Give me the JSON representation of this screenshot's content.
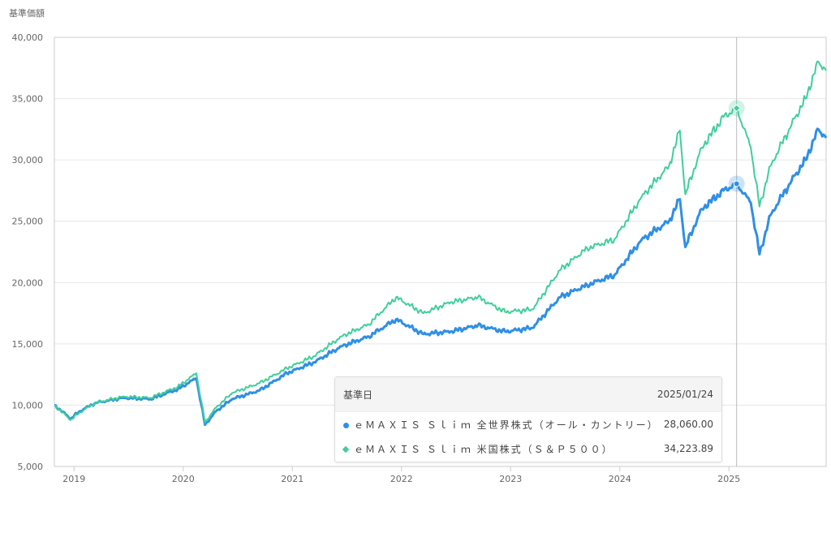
{
  "chart_data": {
    "type": "line",
    "ylabel": "基準価額",
    "ylim": [
      5000,
      40000
    ],
    "xlim": [
      2018.82,
      2025.89
    ],
    "yticks": [
      "5,000",
      "10,000",
      "15,000",
      "20,000",
      "25,000",
      "30,000",
      "35,000",
      "40,000"
    ],
    "ytick_values": [
      5000,
      10000,
      15000,
      20000,
      25000,
      30000,
      35000,
      40000
    ],
    "xticks": [
      "2019",
      "2020",
      "2021",
      "2022",
      "2023",
      "2024",
      "2025"
    ],
    "xtick_values": [
      2019,
      2020,
      2021,
      2022,
      2023,
      2024,
      2025
    ],
    "grid": true,
    "x": [
      2018.82,
      2018.97,
      2019.05,
      2019.2,
      2019.45,
      2019.7,
      2019.95,
      2020.12,
      2020.2,
      2020.3,
      2020.45,
      2020.7,
      2020.95,
      2021.2,
      2021.45,
      2021.7,
      2021.95,
      2022.2,
      2022.45,
      2022.7,
      2022.95,
      2023.2,
      2023.45,
      2023.7,
      2023.95,
      2024.2,
      2024.45,
      2024.55,
      2024.6,
      2024.75,
      2024.95,
      2025.07,
      2025.2,
      2025.28,
      2025.38,
      2025.55,
      2025.7,
      2025.82,
      2025.89
    ],
    "series": [
      {
        "name": "eMAXIS Slim 全世界株式（オール・カントリー）",
        "color": "#2f8fe6",
        "values": [
          10000,
          8900,
          9500,
          10200,
          10600,
          10500,
          11300,
          12200,
          8400,
          9500,
          10500,
          11200,
          12600,
          13500,
          14800,
          15600,
          17000,
          15800,
          16000,
          16500,
          16000,
          16300,
          18800,
          19800,
          20600,
          23500,
          25000,
          26800,
          22900,
          26000,
          27500,
          28060,
          26500,
          22300,
          25500,
          28000,
          30000,
          32500,
          31800
        ]
      },
      {
        "name": "eMAXIS Slim 米国株式（S&P500）",
        "color": "#3fcf9a",
        "values": [
          10000,
          8800,
          9400,
          10200,
          10700,
          10600,
          11500,
          12600,
          8600,
          9800,
          11000,
          11800,
          13000,
          14000,
          15600,
          16600,
          18800,
          17500,
          18400,
          18800,
          17600,
          17800,
          21000,
          22800,
          23500,
          27000,
          29500,
          32400,
          27200,
          31000,
          33500,
          34224,
          31000,
          26200,
          29500,
          32500,
          35000,
          38000,
          37300
        ]
      }
    ],
    "crosshair": {
      "x": 2025.07
    }
  },
  "tooltip": {
    "date_label": "基準日",
    "date": "2025/01/24",
    "rows": [
      {
        "name": "eMAXIS Slim 全世界株式（オール・カントリー）",
        "display": "ｅＭＡＸＩＳ Ｓｌｉｍ 全世界株式（オール・カントリー）",
        "value": "28,060.00"
      },
      {
        "name": "eMAXIS Slim 米国株式（S&P500）",
        "display": "ｅＭＡＸＩＳ Ｓｌｉｍ 米国株式（Ｓ＆Ｐ５００）",
        "value": "34,223.89"
      }
    ]
  }
}
